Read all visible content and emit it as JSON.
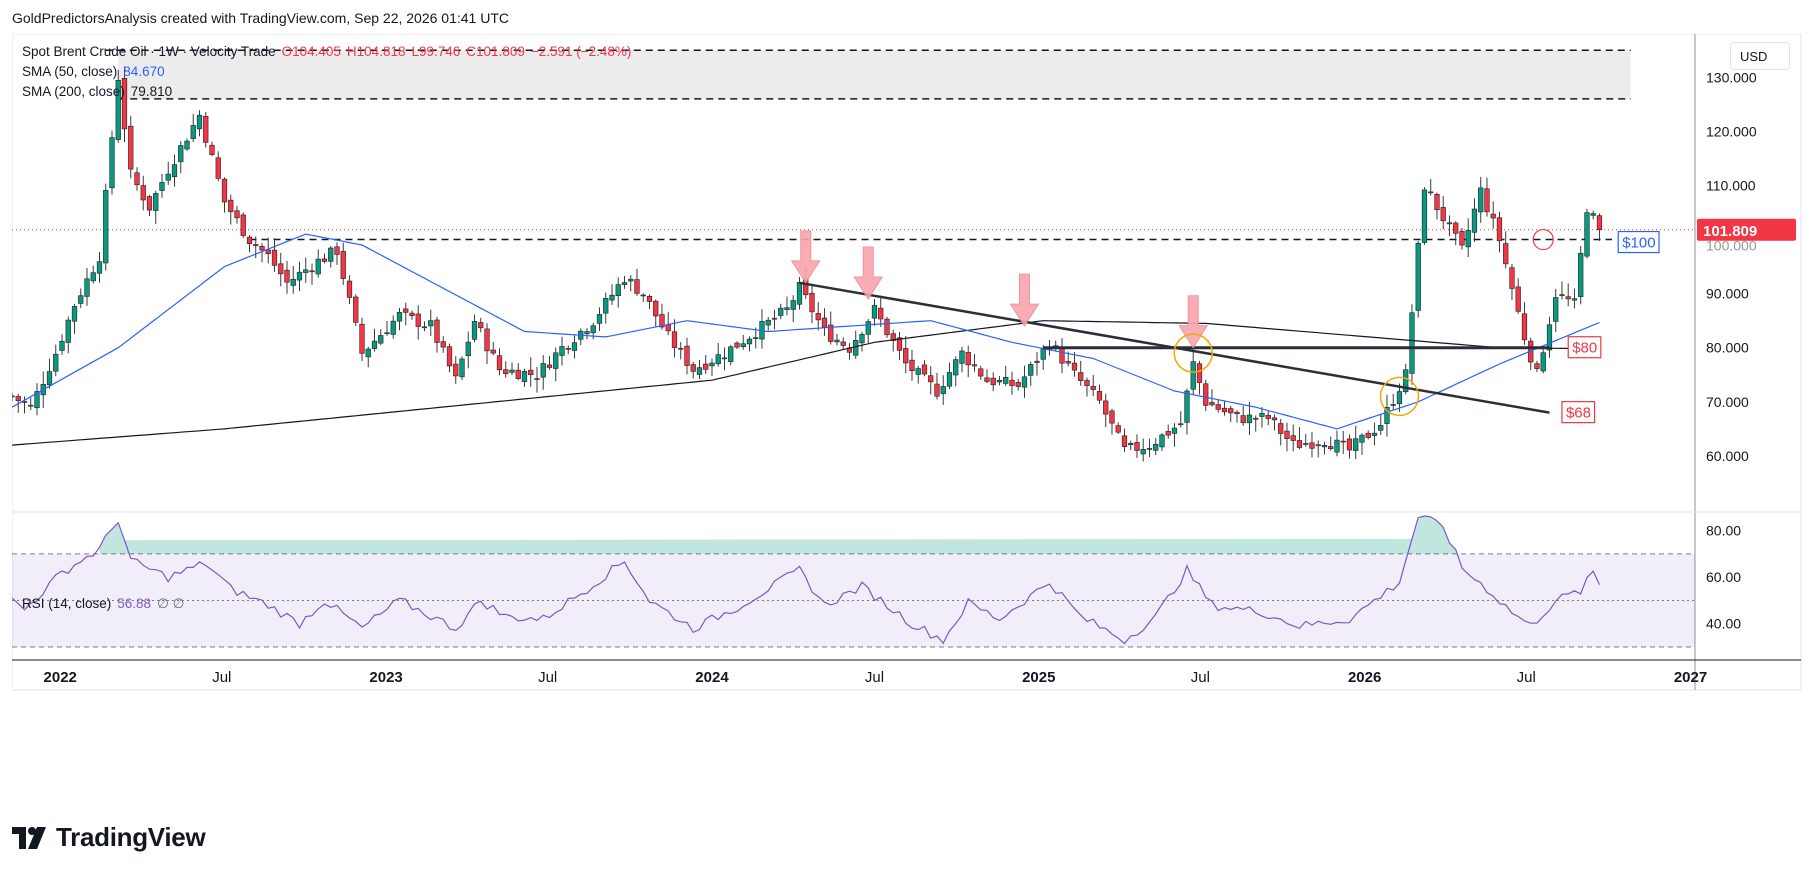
{
  "credit": "GoldPredictorsAnalysis created with TradingView.com, Sep 22, 2026 01:41 UTC",
  "legend": {
    "symbol": "Spot Brent Crude Oil · 1W · Velocity Trade",
    "open": "O104.405",
    "high": "H104.818",
    "low": "L99.746",
    "close": "C101.809",
    "change": "−2.591 (−2.48%)",
    "sma50_label": "SMA (50, close)",
    "sma50_value": "84.670",
    "sma200_label": "SMA (200, close)",
    "sma200_value": "79.810",
    "rsi_label": "RSI (14, close)",
    "rsi_value": "56.88",
    "rsi_extra": "∅ ∅"
  },
  "currency": "USD",
  "logo_text": "TradingView",
  "colors": {
    "up": "#089981",
    "down": "#f23645",
    "sma50": "#2962ff",
    "sma200": "#131722",
    "rsi": "#7e57c2",
    "annotation_red": "#f23645",
    "annotation_blue": "#2962ff",
    "marker_orange": "#f7a600"
  },
  "chart_data": {
    "type": "candlestick",
    "timeframe": "1W",
    "x_ticks": [
      "2022",
      "Jul",
      "2023",
      "Jul",
      "2024",
      "Jul",
      "2025",
      "Jul",
      "2026",
      "Jul",
      "2027"
    ],
    "x_range": [
      "2021-11-08",
      "2027-01-06"
    ],
    "y_price_ticks": [
      "60.000",
      "70.000",
      "80.000",
      "90.000",
      "100.000",
      "110.000",
      "120.000",
      "130.000"
    ],
    "y_price_range": [
      50,
      138
    ],
    "y_rsi_ticks": [
      "40.00",
      "60.00",
      "80.00"
    ],
    "y_rsi_range": [
      27,
      88
    ],
    "rsi_bands": [
      30,
      50,
      70
    ],
    "last_price_label": "101.809",
    "price_anchors": [
      [
        "2021-11-08",
        71
      ],
      [
        "2021-11-29",
        69
      ],
      [
        "2021-12-27",
        79
      ],
      [
        "2022-01-17",
        88
      ],
      [
        "2022-02-14",
        97
      ],
      [
        "2022-03-07",
        130
      ],
      [
        "2022-03-21",
        112
      ],
      [
        "2022-04-11",
        106
      ],
      [
        "2022-05-02",
        113
      ],
      [
        "2022-06-06",
        123
      ],
      [
        "2022-07-04",
        107
      ],
      [
        "2022-08-01",
        100
      ],
      [
        "2022-08-22",
        97
      ],
      [
        "2022-09-12",
        92
      ],
      [
        "2022-10-17",
        96
      ],
      [
        "2022-11-07",
        98
      ],
      [
        "2022-12-05",
        79
      ],
      [
        "2023-01-16",
        86
      ],
      [
        "2023-02-20",
        84
      ],
      [
        "2023-03-20",
        74
      ],
      [
        "2023-04-10",
        85
      ],
      [
        "2023-05-08",
        76
      ],
      [
        "2023-06-19",
        75
      ],
      [
        "2023-07-17",
        80
      ],
      [
        "2023-08-21",
        85
      ],
      [
        "2023-09-25",
        93
      ],
      [
        "2023-10-16",
        90
      ],
      [
        "2023-11-13",
        82
      ],
      [
        "2023-12-11",
        76
      ],
      [
        "2024-01-15",
        79
      ],
      [
        "2024-02-19",
        83
      ],
      [
        "2024-03-25",
        87
      ],
      [
        "2024-04-08",
        91
      ],
      [
        "2024-05-06",
        83
      ],
      [
        "2024-06-03",
        80
      ],
      [
        "2024-07-01",
        87
      ],
      [
        "2024-08-05",
        77
      ],
      [
        "2024-09-09",
        72
      ],
      [
        "2024-10-07",
        79
      ],
      [
        "2024-11-04",
        74
      ],
      [
        "2024-12-09",
        73
      ],
      [
        "2025-01-13",
        81
      ],
      [
        "2025-02-10",
        75
      ],
      [
        "2025-03-10",
        70
      ],
      [
        "2025-04-07",
        61
      ],
      [
        "2025-05-05",
        62
      ],
      [
        "2025-06-09",
        66
      ],
      [
        "2025-06-23",
        77
      ],
      [
        "2025-07-07",
        70
      ],
      [
        "2025-08-11",
        67
      ],
      [
        "2025-09-15",
        67
      ],
      [
        "2025-10-13",
        62
      ],
      [
        "2025-11-17",
        63
      ],
      [
        "2025-12-15",
        61
      ],
      [
        "2026-01-19",
        66
      ],
      [
        "2026-02-16",
        75
      ],
      [
        "2026-03-09",
        110
      ],
      [
        "2026-03-30",
        104
      ],
      [
        "2026-04-20",
        98
      ],
      [
        "2026-05-11",
        109
      ],
      [
        "2026-06-01",
        100
      ],
      [
        "2026-06-29",
        82
      ],
      [
        "2026-07-13",
        75
      ],
      [
        "2026-08-03",
        90
      ],
      [
        "2026-08-24",
        88
      ],
      [
        "2026-09-07",
        106
      ],
      [
        "2026-09-21",
        101.809
      ]
    ],
    "sma50_anchors": [
      [
        "2021-11-08",
        69
      ],
      [
        "2022-03-07",
        80
      ],
      [
        "2022-07-04",
        95
      ],
      [
        "2022-10-03",
        101
      ],
      [
        "2022-12-05",
        99
      ],
      [
        "2023-03-06",
        91
      ],
      [
        "2023-06-05",
        83
      ],
      [
        "2023-09-04",
        82
      ],
      [
        "2023-12-04",
        85
      ],
      [
        "2024-03-04",
        83
      ],
      [
        "2024-06-03",
        84
      ],
      [
        "2024-09-02",
        85
      ],
      [
        "2024-12-02",
        81
      ],
      [
        "2025-03-03",
        78
      ],
      [
        "2025-06-02",
        72
      ],
      [
        "2025-09-01",
        69
      ],
      [
        "2025-12-01",
        65
      ],
      [
        "2026-03-02",
        70
      ],
      [
        "2026-06-01",
        77
      ],
      [
        "2026-09-21",
        84.67
      ]
    ],
    "sma200_anchors": [
      [
        "2021-11-08",
        62
      ],
      [
        "2022-07-04",
        65
      ],
      [
        "2023-01-02",
        68
      ],
      [
        "2023-07-03",
        71
      ],
      [
        "2024-01-01",
        74
      ],
      [
        "2024-07-01",
        81
      ],
      [
        "2025-01-06",
        85
      ],
      [
        "2025-07-07",
        84.5
      ],
      [
        "2026-01-05",
        82
      ],
      [
        "2026-06-01",
        80
      ],
      [
        "2026-09-21",
        79.81
      ]
    ],
    "rsi_anchors": [
      [
        "2021-11-08",
        50
      ],
      [
        "2021-11-22",
        46
      ],
      [
        "2022-01-03",
        62
      ],
      [
        "2022-02-14",
        72
      ],
      [
        "2022-03-07",
        85
      ],
      [
        "2022-03-21",
        67
      ],
      [
        "2022-05-02",
        60
      ],
      [
        "2022-06-13",
        66
      ],
      [
        "2022-07-11",
        55
      ],
      [
        "2022-08-22",
        48
      ],
      [
        "2022-09-26",
        40
      ],
      [
        "2022-10-24",
        50
      ],
      [
        "2022-12-05",
        38
      ],
      [
        "2023-01-16",
        50
      ],
      [
        "2023-03-20",
        38
      ],
      [
        "2023-04-17",
        50
      ],
      [
        "2023-05-15",
        43
      ],
      [
        "2023-06-26",
        42
      ],
      [
        "2023-08-14",
        55
      ],
      [
        "2023-09-25",
        67
      ],
      [
        "2023-10-23",
        50
      ],
      [
        "2023-12-11",
        38
      ],
      [
        "2024-01-29",
        47
      ],
      [
        "2024-04-08",
        63
      ],
      [
        "2024-05-06",
        48
      ],
      [
        "2024-06-17",
        56
      ],
      [
        "2024-08-12",
        40
      ],
      [
        "2024-09-16",
        33
      ],
      [
        "2024-10-14",
        49
      ],
      [
        "2024-11-18",
        42
      ],
      [
        "2025-01-13",
        58
      ],
      [
        "2025-02-17",
        43
      ],
      [
        "2025-04-07",
        33
      ],
      [
        "2025-05-12",
        43
      ],
      [
        "2025-06-16",
        63
      ],
      [
        "2025-07-14",
        48
      ],
      [
        "2025-09-08",
        45
      ],
      [
        "2025-10-20",
        39
      ],
      [
        "2025-12-15",
        42
      ],
      [
        "2026-02-09",
        58
      ],
      [
        "2026-03-02",
        86
      ],
      [
        "2026-03-30",
        82
      ],
      [
        "2026-04-20",
        64
      ],
      [
        "2026-05-18",
        55
      ],
      [
        "2026-06-15",
        45
      ],
      [
        "2026-07-06",
        39
      ],
      [
        "2026-08-03",
        50
      ],
      [
        "2026-08-31",
        54
      ],
      [
        "2026-09-14",
        62
      ],
      [
        "2026-09-21",
        56.88
      ]
    ],
    "annotations": {
      "resistance_zone": {
        "from": 126,
        "to": 135
      },
      "horizontal_lines": [
        {
          "level": 135,
          "style": "dashed"
        },
        {
          "level": 126,
          "style": "dashed"
        },
        {
          "level": 100,
          "style": "dashed",
          "label": "$100"
        }
      ],
      "level_line_80": {
        "start": "2025-01-06",
        "end": "2026-07-27",
        "level": 80,
        "label": "$80"
      },
      "trendline": {
        "start": [
          "2024-04-08",
          92
        ],
        "end": [
          "2026-07-27",
          68
        ],
        "label": "$68"
      },
      "arrows": [
        {
          "date": "2024-04-15",
          "tip": 92
        },
        {
          "date": "2024-06-24",
          "tip": 89
        },
        {
          "date": "2024-12-16",
          "tip": 84
        },
        {
          "date": "2025-06-23",
          "tip": 80
        }
      ],
      "orange_circles": [
        [
          "2025-06-23",
          79
        ],
        [
          "2026-02-09",
          71
        ]
      ],
      "red_circle": [
        "2026-07-20",
        100
      ]
    }
  }
}
